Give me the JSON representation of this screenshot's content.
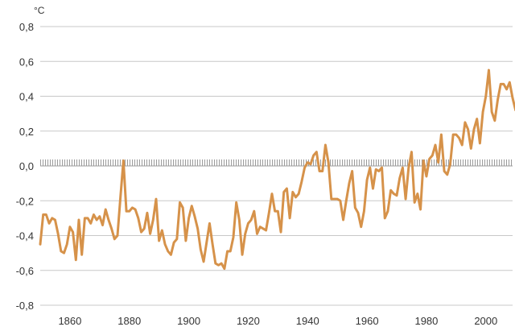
{
  "chart_data": {
    "type": "line",
    "title": "",
    "xlabel": "",
    "ylabel": "°C",
    "xlim": [
      1850,
      2009
    ],
    "ylim": [
      -0.8,
      0.8
    ],
    "grid": true,
    "zero_line_style": "hatched",
    "legend": "none",
    "line_color": "#d6924a",
    "yticks": [
      0.8,
      0.6,
      0.4,
      0.2,
      0.0,
      -0.2,
      -0.4,
      -0.6,
      -0.8
    ],
    "ytick_labels": [
      "0,8",
      "0,6",
      "0,4",
      "0,2",
      "0,0",
      "-0,2",
      "-0,4",
      "-0,6",
      "-0,8"
    ],
    "xticks": [
      1860,
      1880,
      1900,
      1920,
      1940,
      1960,
      1980,
      2000
    ],
    "xtick_labels": [
      "1860",
      "1880",
      "1900",
      "1920",
      "1940",
      "1960",
      "1980",
      "2000"
    ],
    "series": [
      {
        "x_start": 1850,
        "x_step": 1,
        "values": [
          -0.45,
          -0.28,
          -0.28,
          -0.33,
          -0.3,
          -0.31,
          -0.39,
          -0.49,
          -0.5,
          -0.45,
          -0.35,
          -0.38,
          -0.54,
          -0.31,
          -0.51,
          -0.3,
          -0.3,
          -0.33,
          -0.28,
          -0.31,
          -0.29,
          -0.34,
          -0.25,
          -0.31,
          -0.36,
          -0.42,
          -0.4,
          -0.18,
          0.03,
          -0.26,
          -0.26,
          -0.24,
          -0.25,
          -0.3,
          -0.38,
          -0.36,
          -0.27,
          -0.39,
          -0.31,
          -0.19,
          -0.43,
          -0.37,
          -0.45,
          -0.49,
          -0.51,
          -0.44,
          -0.42,
          -0.21,
          -0.24,
          -0.43,
          -0.3,
          -0.23,
          -0.29,
          -0.36,
          -0.48,
          -0.55,
          -0.44,
          -0.33,
          -0.45,
          -0.56,
          -0.57,
          -0.56,
          -0.59,
          -0.49,
          -0.49,
          -0.41,
          -0.21,
          -0.31,
          -0.51,
          -0.39,
          -0.33,
          -0.31,
          -0.26,
          -0.39,
          -0.35,
          -0.36,
          -0.37,
          -0.27,
          -0.16,
          -0.26,
          -0.26,
          -0.38,
          -0.15,
          -0.13,
          -0.3,
          -0.15,
          -0.18,
          -0.16,
          -0.09,
          -0.01,
          0.02,
          0.01,
          0.06,
          0.08,
          -0.03,
          -0.03,
          0.12,
          0.02,
          -0.19,
          -0.19,
          -0.19,
          -0.2,
          -0.31,
          -0.2,
          -0.1,
          -0.03,
          -0.24,
          -0.27,
          -0.35,
          -0.26,
          -0.08,
          -0.01,
          -0.13,
          -0.02,
          -0.03,
          -0.01,
          -0.3,
          -0.26,
          -0.14,
          -0.16,
          -0.17,
          -0.07,
          -0.01,
          -0.19,
          -0.01,
          0.08,
          -0.21,
          -0.16,
          -0.25,
          0.03,
          -0.06,
          0.04,
          0.06,
          0.12,
          0.02,
          0.18,
          -0.03,
          -0.05,
          0.01,
          0.18,
          0.18,
          0.16,
          0.12,
          0.25,
          0.21,
          0.1,
          0.21,
          0.27,
          0.13,
          0.31,
          0.4,
          0.55,
          0.31,
          0.26,
          0.38,
          0.47,
          0.47,
          0.44,
          0.48,
          0.39,
          0.32
        ]
      }
    ]
  }
}
